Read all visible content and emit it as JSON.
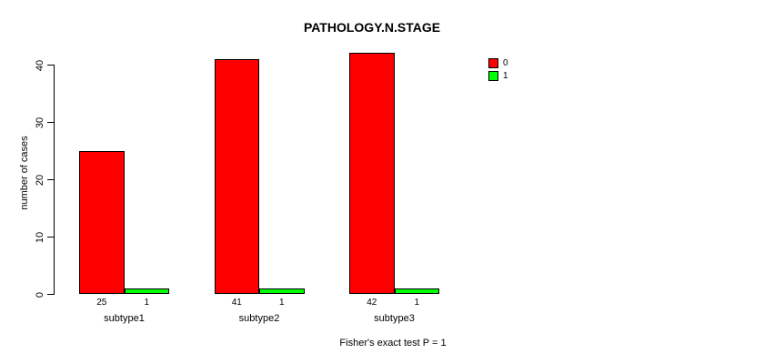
{
  "chart_data": {
    "type": "bar",
    "title": "PATHOLOGY.N.STAGE",
    "ylabel": "number of cases",
    "xlabel": "",
    "footnote": "Fisher's exact test P = 1",
    "categories": [
      "subtype1",
      "subtype2",
      "subtype3"
    ],
    "series": [
      {
        "name": "0",
        "color": "#ff0000",
        "values": [
          25,
          41,
          42
        ]
      },
      {
        "name": "1",
        "color": "#00ff00",
        "values": [
          1,
          1,
          1
        ]
      }
    ],
    "bar_value_labels": [
      [
        "25",
        "1"
      ],
      [
        "41",
        "1"
      ],
      [
        "42",
        "1"
      ]
    ],
    "yticks": [
      0,
      10,
      20,
      30,
      40
    ],
    "ylim": [
      0,
      40
    ],
    "grid": false,
    "legend_position": "top-right",
    "bar_border_color": "#000000",
    "background_color": "#ffffff",
    "text_color": "#000000"
  }
}
